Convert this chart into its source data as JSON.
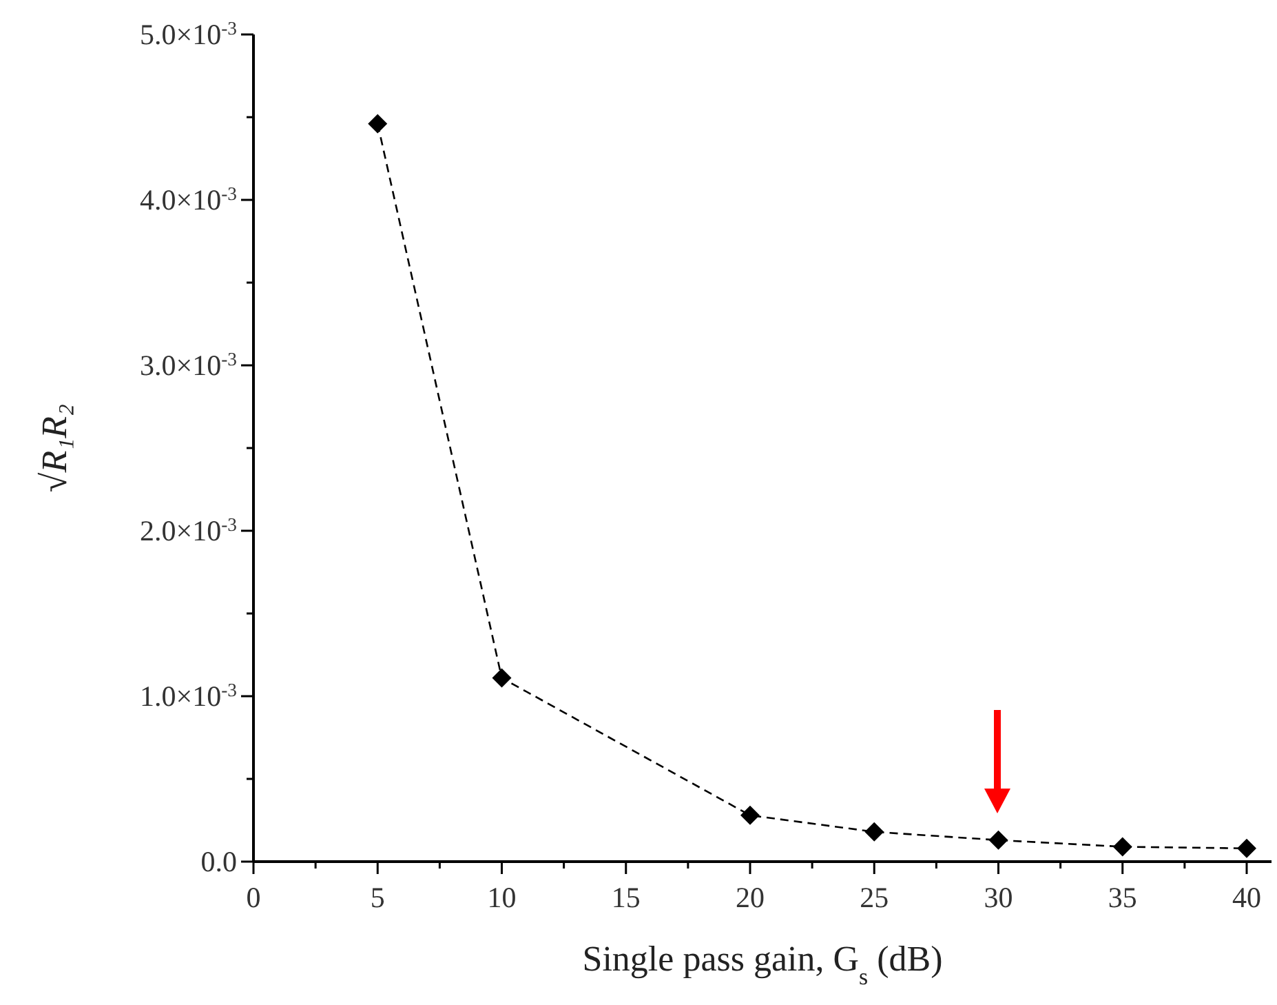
{
  "chart_data": {
    "type": "line",
    "xlabel": "Single pass gain, G$_{s}$ (dB)",
    "ylabel": "√R₁R₂",
    "x": [
      5,
      10,
      20,
      25,
      30,
      35,
      40
    ],
    "series": [
      {
        "color": "#000000",
        "values": [
          0.00446,
          0.00111,
          0.00028,
          0.00018,
          0.00013,
          9e-05,
          8e-05
        ]
      }
    ],
    "marker": "diamond",
    "line_style": "dashed",
    "grid": false,
    "xlim": [
      0,
      41
    ],
    "ylim": [
      0,
      0.005
    ],
    "xticks": [
      0,
      {
        "value": 2.5,
        "label": null
      },
      5,
      {
        "value": 7.5,
        "label": null
      },
      10,
      {
        "value": 12.5,
        "label": null
      },
      15,
      {
        "value": 17.5,
        "label": null
      },
      20,
      {
        "value": 22.5,
        "label": null
      },
      25,
      {
        "value": 27.5,
        "label": null
      },
      30,
      {
        "value": 32.5,
        "label": null
      },
      35,
      {
        "value": 37.5,
        "label": null
      },
      40
    ],
    "yticks": [
      {
        "value": 0,
        "label": "0.0"
      },
      {
        "value": 0.0005,
        "label": null
      },
      {
        "value": 0.001,
        "label": "1.0×10$^{-3}$"
      },
      {
        "value": 0.0015,
        "label": null
      },
      {
        "value": 0.002,
        "label": "2.0×10$^{-3}$"
      },
      {
        "value": 0.0025,
        "label": null
      },
      {
        "value": 0.003,
        "label": "3.0×10$^{-3}$"
      },
      {
        "value": 0.0035,
        "label": null
      },
      {
        "value": 0.004,
        "label": "4.0×10$^{-3}$"
      },
      {
        "value": 0.0045,
        "label": null
      },
      {
        "value": 0.005,
        "label": "5.0×10$^{-3}$"
      }
    ]
  }
}
